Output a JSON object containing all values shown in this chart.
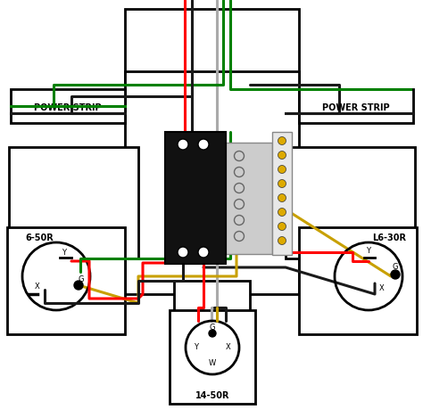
{
  "bg_color": "#ffffff",
  "wire_colors": {
    "red": "#ff0000",
    "black": "#1a1a1a",
    "green": "#008000",
    "gray": "#aaaaaa",
    "yellow": "#c8a000"
  },
  "labels": {
    "power_strip_left": "POWER STRIP",
    "power_strip_right": "POWER STRIP",
    "outlet_left": "6-50R",
    "outlet_right": "L6-30R",
    "outlet_bottom": "14-50R"
  }
}
